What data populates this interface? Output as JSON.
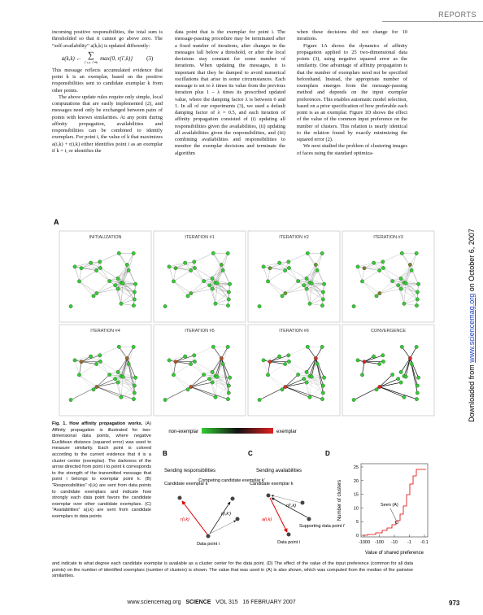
{
  "header": {
    "section": "REPORTS"
  },
  "body": {
    "column1": {
      "p0": "incoming positive responsibilities, the total sum is thresholded so that it cannot go above zero. The “self-availability” a(k,k) is updated differently:",
      "equation": {
        "lhs": "a(k,k) ←",
        "sum": "∑",
        "subscript": "i′ s.t. i′≠k",
        "rhs": "max{0, r(i′,k)}",
        "number": "(3)"
      },
      "p1": "This message reflects accumulated evidence that point k is an exemplar, based on the positive responsibilities sent to candidate exemplar k from other points.",
      "p2": "The above update rules require only simple, local computations that are easily implemented (2), and messages need only be exchanged between pairs of points with known similarities. At any point during affinity propagation, availabilities and responsibilities can be combined to identify exemplars. For point i, the value of k that maximizes a(i,k) + r(i,k) either identifies point i as an exemplar if k = i, or identifies the"
    },
    "column2": {
      "p0": "data point that is the exemplar for point i. The message-passing procedure may be terminated after a fixed number of iterations, after changes in the messages fall below a threshold, or after the local decisions stay constant for some number of iterations. When updating the messages, it is important that they be damped to avoid numerical oscillations that arise in some circumstances. Each message is set to λ times its value from the previous iteration plus 1 – λ times its prescribed updated value, where the damping factor λ is between 0 and 1. In all of our experiments (3), we used a default damping factor of λ = 0.5, and each iteration of affinity propagation consisted of (i) updating all responsibilities given the availabilities, (ii) updating all availabilities given the responsibilities, and (iii) combining availabilities and responsibilities to monitor the exemplar decisions and terminate the algorithm"
    },
    "column3": {
      "p0": "when these decisions did not change for 10 iterations.",
      "p1": "Figure 1A shows the dynamics of affinity propagation applied to 25 two-dimensional data points (3), using negative squared error as the similarity. One advantage of affinity propagation is that the number of exemplars need not be specified beforehand. Instead, the appropriate number of exemplars emerges from the message-passing method and depends on the input exemplar preferences. This enables automatic model selection, based on a prior specification of how preferable each point is as an exemplar. Figure 1D shows the effect of the value of the common input preference on the number of clusters. This relation is nearly identical to the relation found by exactly minimizing the squared error (2).",
      "p2": "We next studied the problem of clustering images of faces using the standard optimiza-"
    }
  },
  "figure": {
    "label_a": "A",
    "panels": [
      "INITIALIZATION",
      "ITERATION #1",
      "ITERATION #2",
      "ITERATION #3",
      "ITERATION #4",
      "ITERATION #5",
      "ITERATION #6",
      "CONVERGENCE"
    ],
    "colorbar": {
      "low": "non-exemplar",
      "high": "exemplar"
    },
    "panel_b": {
      "label": "B",
      "title": "Sending responsibilities",
      "candidate": "Candidate exemplar k",
      "competing": "Competing candidate exemplar k′",
      "r_ik": "r(i,k)",
      "r_ik2": "r(i,k′)",
      "point": "Data point i"
    },
    "panel_c": {
      "label": "C",
      "title": "Sending availabilities",
      "candidate": "Candidate exemplar k",
      "supporting": "Supporting data point i′",
      "a_ik": "a(i,k)",
      "r_i2k": "r(i′,k)",
      "point": "Data point i"
    },
    "panel_d": {
      "label": "D",
      "ylabel": "Number of clusters",
      "xlabel": "Value of shared preference",
      "marker": "Seen (A)",
      "yticks": [
        "0",
        "5",
        "10",
        "15",
        "20",
        "25"
      ],
      "xticks": [
        "-1000",
        "-100",
        "-10",
        "-1",
        "-0.1"
      ]
    }
  },
  "caption": {
    "label": "Fig. 1.",
    "title": "How affinity propagation works.",
    "part1": "(A) Affinity propagation is illustrated for two-dimensional data points, where negative Euclidean distance (squared error) was used to measure similarity. Each point is colored according to the current evidence that it is a cluster center (exemplar). The darkness of the arrow directed from point i to point k corresponds to the strength of the transmitted message that point i belongs to exemplar point k. (B) “Responsibilities” r(i,k) are sent from data points to candidate exemplars and indicate how strongly each data point favors the candidate exemplar over other candidate exemplars. (C) “Availabilities” a(i,k) are sent from candidate exemplars to data points",
    "part2": "and indicate to what degree each candidate exemplar is available as a cluster center for the data point. (D) The effect of the value of the input preference (common for all data points) on the number of identified exemplars (number of clusters) is shown. The value that was used in (A) is also shown, which was computed from the median of the pairwise similarities."
  },
  "sidebar": {
    "prefix": "Downloaded from",
    "link": "www.sciencemag.org",
    "suffix": "on October 6, 2007"
  },
  "footer": {
    "site": "www.sciencemag.org",
    "journal": "SCIENCE",
    "volume": "VOL 315",
    "date": "16 FEBRUARY 2007",
    "page": "973"
  }
}
